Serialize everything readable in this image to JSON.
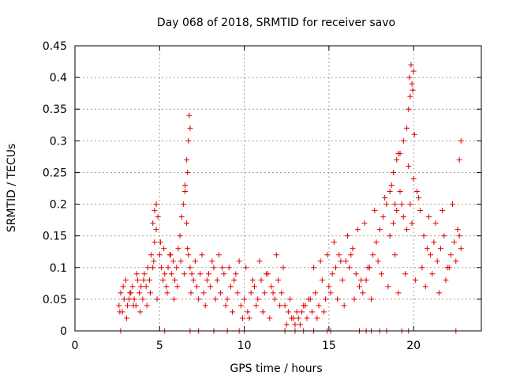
{
  "chart_data": {
    "type": "scatter",
    "title": "Day 068 of 2018, SRMTID for receiver savo",
    "xlabel": "GPS time / hours",
    "ylabel": "SRMTID / TECUs",
    "xlim": [
      0,
      24
    ],
    "ylim": [
      0,
      0.45
    ],
    "xticks": [
      0,
      5,
      10,
      15,
      20
    ],
    "xtick_labels": [
      "0",
      "5",
      "10",
      "15",
      "20"
    ],
    "yticks": [
      0,
      0.05,
      0.1,
      0.15,
      0.2,
      0.25,
      0.3,
      0.35,
      0.4,
      0.45
    ],
    "ytick_labels": [
      "0",
      "0.05",
      "0.1",
      "0.15",
      "0.2",
      "0.25",
      "0.3",
      "0.35",
      "0.4",
      "0.45"
    ],
    "grid": true,
    "marker": "+",
    "series": [
      {
        "name": "SRMTID",
        "color": "#e00000",
        "x": [
          2.6,
          2.7,
          2.8,
          2.9,
          3.0,
          3.1,
          3.2,
          3.3,
          3.4,
          3.5,
          3.6,
          3.7,
          3.8,
          3.9,
          4.0,
          4.1,
          4.2,
          4.3,
          4.4,
          4.5,
          4.6,
          4.7,
          4.8,
          4.9,
          5.0,
          5.1,
          5.2,
          5.3,
          5.4,
          5.5,
          5.6,
          5.7,
          5.8,
          5.9,
          6.0,
          6.1,
          6.2,
          6.3,
          6.4,
          6.5,
          6.6,
          6.7,
          6.8,
          6.9,
          7.0,
          7.2,
          7.4,
          7.6,
          7.8,
          8.0,
          8.2,
          8.4,
          8.6,
          8.8,
          9.0,
          9.2,
          9.4,
          9.6,
          9.8,
          10.0,
          10.2,
          10.4,
          10.6,
          10.8,
          11.0,
          11.2,
          11.4,
          11.6,
          11.8,
          12.0,
          12.2,
          12.4,
          12.6,
          12.8,
          13.0,
          13.2,
          13.4,
          13.6,
          13.8,
          14.0,
          14.2,
          14.4,
          14.6,
          14.8,
          15.0,
          15.2,
          15.4,
          15.6,
          15.8,
          16.0,
          16.2,
          16.4,
          16.6,
          16.8,
          17.0,
          17.2,
          17.4,
          17.6,
          17.8,
          18.0,
          18.2,
          18.4,
          18.6,
          18.8,
          19.0,
          19.2,
          19.4,
          19.6,
          19.8,
          20.0,
          20.2,
          20.4,
          20.6,
          20.8,
          21.0,
          21.2,
          21.4,
          21.6,
          21.8,
          22.0,
          22.2,
          22.4,
          22.6,
          22.8,
          2.65,
          2.85,
          3.05,
          3.25,
          3.45,
          3.65,
          3.85,
          4.05,
          4.25,
          4.45,
          4.65,
          4.85,
          5.05,
          5.25,
          5.45,
          5.65,
          5.85,
          6.05,
          6.25,
          6.45,
          6.65,
          6.85,
          7.1,
          7.3,
          7.5,
          7.7,
          7.9,
          8.1,
          8.3,
          8.5,
          8.7,
          8.9,
          9.1,
          9.3,
          9.5,
          9.7,
          9.9,
          10.1,
          10.3,
          10.5,
          10.7,
          10.9,
          11.1,
          11.3,
          11.5,
          11.7,
          11.9,
          12.1,
          12.3,
          12.5,
          12.7,
          12.9,
          13.1,
          13.3,
          13.5,
          13.7,
          13.9,
          14.1,
          14.3,
          14.5,
          14.7,
          14.9,
          15.1,
          15.3,
          15.5,
          15.7,
          15.9,
          16.1,
          16.3,
          16.5,
          16.7,
          16.9,
          17.1,
          17.3,
          17.5,
          17.7,
          17.9,
          18.1,
          18.3,
          18.5,
          18.7,
          18.9,
          19.1,
          19.3,
          19.5,
          19.7,
          19.9,
          20.1,
          20.3,
          20.5,
          20.7,
          20.9,
          21.1,
          21.3,
          21.5,
          21.7,
          21.9,
          22.1,
          22.3,
          22.5,
          22.7,
          4.6,
          4.7,
          4.8,
          6.5,
          6.6,
          6.7,
          6.8,
          6.75,
          6.65,
          18.6,
          18.8,
          19.0,
          19.2,
          19.4,
          19.6,
          19.7,
          19.8,
          19.9,
          20.0,
          19.75,
          19.85,
          19.95,
          20.05,
          18.9,
          19.1,
          22.8,
          22.7,
          2.7,
          5.3,
          6.8,
          7.3,
          8.2,
          9.0,
          9.7,
          10.0,
          12.4,
          13.0,
          13.5,
          14.1,
          14.9,
          15.1,
          16.8,
          17.2,
          17.5,
          18.0,
          18.4,
          19.3,
          19.7,
          22.5
        ],
        "y": [
          0.04,
          0.06,
          0.03,
          0.05,
          0.08,
          0.04,
          0.05,
          0.06,
          0.07,
          0.05,
          0.04,
          0.08,
          0.06,
          0.07,
          0.05,
          0.09,
          0.07,
          0.1,
          0.08,
          0.12,
          0.1,
          0.14,
          0.16,
          0.18,
          0.12,
          0.1,
          0.08,
          0.09,
          0.07,
          0.1,
          0.12,
          0.09,
          0.11,
          0.08,
          0.1,
          0.13,
          0.15,
          0.18,
          0.2,
          0.22,
          0.17,
          0.12,
          0.1,
          0.09,
          0.08,
          0.07,
          0.09,
          0.06,
          0.08,
          0.07,
          0.1,
          0.08,
          0.06,
          0.09,
          0.05,
          0.07,
          0.08,
          0.06,
          0.04,
          0.05,
          0.03,
          0.06,
          0.07,
          0.05,
          0.08,
          0.06,
          0.09,
          0.07,
          0.05,
          0.08,
          0.06,
          0.04,
          0.03,
          0.02,
          0.01,
          0.02,
          0.03,
          0.04,
          0.05,
          0.03,
          0.06,
          0.04,
          0.08,
          0.05,
          0.07,
          0.09,
          0.1,
          0.12,
          0.08,
          0.11,
          0.1,
          0.13,
          0.09,
          0.07,
          0.06,
          0.08,
          0.1,
          0.12,
          0.14,
          0.16,
          0.18,
          0.2,
          0.15,
          0.17,
          0.19,
          0.22,
          0.18,
          0.16,
          0.2,
          0.24,
          0.22,
          0.19,
          0.15,
          0.13,
          0.12,
          0.14,
          0.11,
          0.13,
          0.15,
          0.1,
          0.12,
          0.14,
          0.16,
          0.13,
          0.03,
          0.07,
          0.02,
          0.06,
          0.04,
          0.09,
          0.03,
          0.08,
          0.04,
          0.06,
          0.11,
          0.05,
          0.14,
          0.13,
          0.06,
          0.12,
          0.05,
          0.07,
          0.11,
          0.09,
          0.13,
          0.06,
          0.11,
          0.05,
          0.12,
          0.04,
          0.09,
          0.11,
          0.05,
          0.12,
          0.1,
          0.04,
          0.1,
          0.03,
          0.09,
          0.11,
          0.02,
          0.1,
          0.02,
          0.08,
          0.04,
          0.11,
          0.03,
          0.09,
          0.02,
          0.06,
          0.12,
          0.04,
          0.1,
          0.01,
          0.05,
          0.02,
          0.03,
          0.01,
          0.04,
          0.02,
          0.05,
          0.1,
          0.02,
          0.11,
          0.03,
          0.12,
          0.06,
          0.14,
          0.05,
          0.11,
          0.04,
          0.15,
          0.12,
          0.05,
          0.16,
          0.08,
          0.17,
          0.1,
          0.05,
          0.19,
          0.11,
          0.09,
          0.21,
          0.07,
          0.23,
          0.12,
          0.06,
          0.2,
          0.09,
          0.26,
          0.17,
          0.08,
          0.21,
          0.1,
          0.07,
          0.18,
          0.09,
          0.17,
          0.06,
          0.19,
          0.08,
          0.1,
          0.2,
          0.11,
          0.15,
          0.17,
          0.19,
          0.2,
          0.23,
          0.27,
          0.3,
          0.32,
          0.34,
          0.25,
          0.22,
          0.25,
          0.27,
          0.28,
          0.3,
          0.32,
          0.35,
          0.37,
          0.39,
          0.41,
          0.4,
          0.42,
          0.38,
          0.31,
          0.2,
          0.28,
          0.3,
          0.27,
          0,
          0,
          0,
          0,
          0,
          0,
          0,
          0,
          0,
          0,
          0,
          0,
          0,
          0,
          0,
          0,
          0,
          0,
          0,
          0,
          0,
          0
        ]
      }
    ]
  }
}
